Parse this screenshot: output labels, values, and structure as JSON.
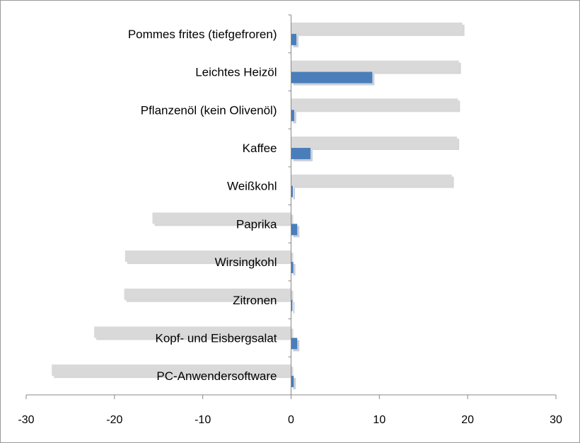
{
  "chart_data": {
    "type": "bar",
    "orientation": "horizontal",
    "categories": [
      "Pommes frites (tiefgefroren)",
      "Leichtes Heizöl",
      "Pflanzenöl (kein Olivenöl)",
      "Kaffee",
      "Weißkohl",
      "Paprika",
      "Wirsingkohl",
      "Zitronen",
      "Kopf- und Eisbergsalat",
      "PC-Anwendersoftware"
    ],
    "series": [
      {
        "color": "#4a7ebb",
        "values": [
          0.6,
          9.2,
          0.35,
          2.2,
          0.2,
          0.7,
          0.25,
          0.15,
          0.7,
          0.3
        ]
      },
      {
        "color": "#d9d9d9",
        "values": [
          19.4,
          19.0,
          18.9,
          18.8,
          18.2,
          -15.7,
          -18.8,
          -18.9,
          -22.3,
          -27.1
        ]
      }
    ],
    "xlim": [
      -30,
      30
    ],
    "xticks": [
      -30,
      -20,
      -10,
      0,
      10,
      20,
      30
    ],
    "title": "",
    "xlabel": "",
    "ylabel": "",
    "grid": false,
    "legend": "none"
  }
}
